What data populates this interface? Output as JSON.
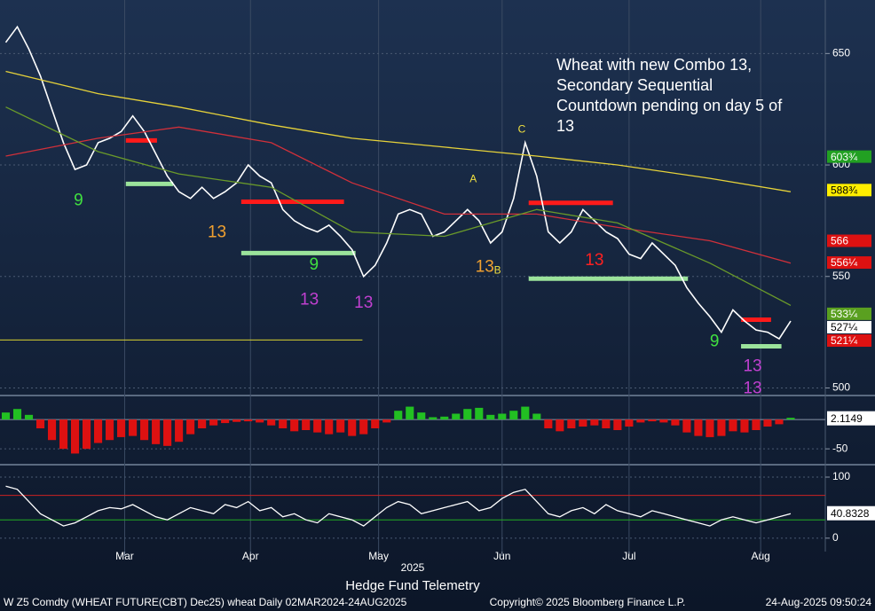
{
  "chart_data": [
    {
      "type": "line",
      "annotation_text": "Wheat with new Combo 13, Secondary Sequential Countdown pending on day 5 of 13",
      "xlim": [
        -0.5,
        71
      ],
      "ylim": [
        497,
        674
      ],
      "yticks": [
        500,
        550,
        600,
        650
      ],
      "grid": true,
      "series": [
        {
          "color": "#ffffff",
          "x": [
            0,
            1,
            2,
            3,
            4,
            5,
            6,
            7,
            8,
            9,
            10,
            11,
            12,
            13,
            14,
            15,
            16,
            17,
            18,
            19,
            20,
            21,
            22,
            23,
            24,
            25,
            26,
            27,
            28,
            29,
            30,
            31,
            32,
            33,
            34,
            35,
            36,
            37,
            38,
            39,
            40,
            41,
            42,
            43,
            44,
            45,
            46,
            47,
            48,
            49,
            50,
            51,
            52,
            53,
            54,
            55,
            56,
            57,
            58,
            59,
            60,
            61,
            62,
            63,
            64,
            65,
            66,
            67,
            68
          ],
          "values": [
            655,
            662,
            652,
            640,
            625,
            610,
            598,
            600,
            610,
            612,
            615,
            622,
            615,
            605,
            595,
            588,
            585,
            590,
            585,
            588,
            592,
            600,
            595,
            592,
            580,
            575,
            572,
            570,
            573,
            568,
            562,
            550,
            555,
            565,
            578,
            580,
            578,
            568,
            570,
            575,
            580,
            575,
            565,
            570,
            585,
            610,
            595,
            570,
            565,
            570,
            580,
            575,
            570,
            567,
            560,
            558,
            565,
            560,
            555,
            545,
            538,
            532,
            525,
            535,
            530,
            526,
            525,
            522,
            530
          ]
        },
        {
          "color": "#e6d23a",
          "x": [
            0,
            8,
            15,
            23,
            30,
            38,
            46,
            53,
            61,
            68
          ],
          "values": [
            642,
            632,
            626,
            618,
            612,
            608,
            604,
            600,
            594,
            588
          ]
        },
        {
          "color": "#d0303a",
          "x": [
            0,
            8,
            15,
            23,
            30,
            38,
            46,
            53,
            61,
            68
          ],
          "values": [
            604,
            612,
            617,
            610,
            592,
            578,
            578,
            572,
            566,
            556
          ]
        },
        {
          "color": "#6a9a2a",
          "x": [
            0,
            8,
            15,
            23,
            30,
            38,
            46,
            53,
            61,
            68
          ],
          "values": [
            626,
            606,
            596,
            590,
            570,
            568,
            580,
            574,
            556,
            537
          ]
        }
      ],
      "levels": [
        {
          "x": [
            10.4,
            13.1
          ],
          "value": 611,
          "color": "#ff1a1a"
        },
        {
          "x": [
            20.4,
            29.3
          ],
          "value": 583.5,
          "color": "#ff1a1a"
        },
        {
          "x": [
            45.3,
            52.6
          ],
          "value": 583,
          "color": "#ff1a1a"
        },
        {
          "x": [
            63.7,
            66.3
          ],
          "value": 530.6,
          "color": "#ff1a1a"
        },
        {
          "x": [
            10.4,
            14.5
          ],
          "value": 591.5,
          "color": "#9be39b"
        },
        {
          "x": [
            20.4,
            30.3
          ],
          "value": 560.5,
          "color": "#9be39b"
        },
        {
          "x": [
            45.3,
            59.1
          ],
          "value": 549,
          "color": "#9be39b"
        },
        {
          "x": [
            63.7,
            67.2
          ],
          "value": 518.7,
          "color": "#9be39b"
        },
        {
          "x": [
            -0.5,
            30.9
          ],
          "value": 521.5,
          "color": "#d8d030"
        }
      ],
      "annotations": [
        {
          "text": "13",
          "x": 26.3,
          "y": 539.4,
          "color": "#c040d0"
        },
        {
          "text": "13",
          "x": 31,
          "y": 538,
          "color": "#c040d0"
        },
        {
          "text": "13",
          "x": 18.3,
          "y": 569.6,
          "color": "#f0a030"
        },
        {
          "text": "13",
          "x": 41.5,
          "y": 554,
          "color": "#f0a030"
        },
        {
          "text": "13",
          "x": 51,
          "y": 557,
          "color": "#ff2020"
        },
        {
          "text": "13",
          "x": 64.7,
          "y": 509.5,
          "color": "#c040d0"
        },
        {
          "text": "13",
          "x": 64.7,
          "y": 499.6,
          "color": "#c040d0"
        },
        {
          "text": "9",
          "x": 6.3,
          "y": 584,
          "color": "#40e040"
        },
        {
          "text": "9",
          "x": 26.7,
          "y": 555,
          "color": "#40e040"
        },
        {
          "text": "9",
          "x": 61.4,
          "y": 520.7,
          "color": "#40e040"
        },
        {
          "text": "C",
          "x": 44.7,
          "y": 615.8,
          "color": "#f0e040"
        },
        {
          "text": "A",
          "x": 40.5,
          "y": 593.5,
          "color": "#f0e040"
        },
        {
          "text": "B",
          "x": 42.6,
          "y": 552.5,
          "color": "#f0e040"
        }
      ],
      "price_labels": [
        {
          "value": 603.75,
          "label": "603¾",
          "color": "#22a022"
        },
        {
          "value": 588.75,
          "label": "588¾",
          "color": "#ffee00"
        },
        {
          "value": 566,
          "label": "566",
          "color": "#dd1111"
        },
        {
          "value": 556.25,
          "label": "556¼",
          "color": "#dd1111"
        },
        {
          "value": 533.25,
          "label": "533¼",
          "color": "#5aa020"
        },
        {
          "value": 527.25,
          "label": "527¼",
          "color": "#ffffff"
        },
        {
          "value": 521.25,
          "label": "521¼",
          "color": "#dd1111"
        }
      ]
    },
    {
      "type": "bar",
      "xlim": [
        -0.5,
        71
      ],
      "ylim": [
        -74,
        38
      ],
      "yticks": [
        -50
      ],
      "grid": true,
      "pos_color": "#22c022",
      "neg_color": "#dd1111",
      "hlines": [
        {
          "value": 0,
          "color": "#8a96a8"
        }
      ],
      "x": [
        0,
        1,
        2,
        3,
        4,
        5,
        6,
        7,
        8,
        9,
        10,
        11,
        12,
        13,
        14,
        15,
        16,
        17,
        18,
        19,
        20,
        21,
        22,
        23,
        24,
        25,
        26,
        27,
        28,
        29,
        30,
        31,
        32,
        33,
        34,
        35,
        36,
        37,
        38,
        39,
        40,
        41,
        42,
        43,
        44,
        45,
        46,
        47,
        48,
        49,
        50,
        51,
        52,
        53,
        54,
        55,
        56,
        57,
        58,
        59,
        60,
        61,
        62,
        63,
        64,
        65,
        66,
        67,
        68
      ],
      "values": [
        12,
        18,
        8,
        -15,
        -35,
        -50,
        -58,
        -50,
        -40,
        -35,
        -30,
        -28,
        -35,
        -42,
        -45,
        -38,
        -25,
        -15,
        -10,
        -6,
        -4,
        -3,
        -5,
        -10,
        -15,
        -20,
        -18,
        -22,
        -25,
        -22,
        -28,
        -25,
        -15,
        -5,
        15,
        22,
        12,
        4,
        5,
        10,
        18,
        20,
        8,
        10,
        15,
        22,
        10,
        -15,
        -20,
        -15,
        -12,
        -10,
        -15,
        -18,
        -12,
        -5,
        -3,
        -5,
        -10,
        -22,
        -28,
        -30,
        -28,
        -20,
        -22,
        -18,
        -12,
        -8,
        3
      ],
      "last_value": 2.1149
    },
    {
      "type": "line",
      "xlim": [
        -0.5,
        71
      ],
      "ylim": [
        -22,
        116
      ],
      "yticks": [
        0,
        100
      ],
      "grid": true,
      "hlines": [
        {
          "value": 70,
          "color": "#cc2222"
        },
        {
          "value": 30,
          "color": "#22aa22"
        }
      ],
      "series": [
        {
          "color": "#ffffff",
          "x": [
            0,
            1,
            2,
            3,
            4,
            5,
            6,
            7,
            8,
            9,
            10,
            11,
            12,
            13,
            14,
            15,
            16,
            17,
            18,
            19,
            20,
            21,
            22,
            23,
            24,
            25,
            26,
            27,
            28,
            29,
            30,
            31,
            32,
            33,
            34,
            35,
            36,
            37,
            38,
            39,
            40,
            41,
            42,
            43,
            44,
            45,
            46,
            47,
            48,
            49,
            50,
            51,
            52,
            53,
            54,
            55,
            56,
            57,
            58,
            59,
            60,
            61,
            62,
            63,
            64,
            65,
            66,
            67,
            68
          ],
          "values": [
            85,
            80,
            60,
            40,
            30,
            20,
            25,
            35,
            45,
            50,
            48,
            55,
            45,
            35,
            30,
            40,
            50,
            45,
            40,
            55,
            50,
            60,
            45,
            50,
            35,
            40,
            30,
            25,
            40,
            35,
            30,
            20,
            35,
            50,
            60,
            55,
            40,
            45,
            50,
            55,
            60,
            45,
            50,
            65,
            75,
            80,
            60,
            40,
            35,
            45,
            50,
            40,
            55,
            45,
            40,
            35,
            45,
            40,
            35,
            30,
            25,
            20,
            30,
            35,
            30,
            25,
            30,
            35,
            40
          ]
        }
      ],
      "last_value": 40.8328,
      "xticks": [
        {
          "value": 10.3,
          "label": "Mar"
        },
        {
          "value": 21.2,
          "label": "Apr"
        },
        {
          "value": 32.3,
          "label": "May"
        },
        {
          "value": 43,
          "label": "Jun"
        },
        {
          "value": 54,
          "label": "Jul"
        },
        {
          "value": 65.4,
          "label": "Aug"
        }
      ],
      "xlabel": "2025"
    }
  ],
  "footer": {
    "title": "Hedge Fund Telemetry",
    "ticker": "W Z5 Comdty (WHEAT FUTURE(CBT) Dec25) wheat  Daily 02MAR2024-24AUG2025",
    "copyright": "Copyright© 2025 Bloomberg Finance L.P.",
    "timestamp": "24-Aug-2025 09:50:24"
  }
}
